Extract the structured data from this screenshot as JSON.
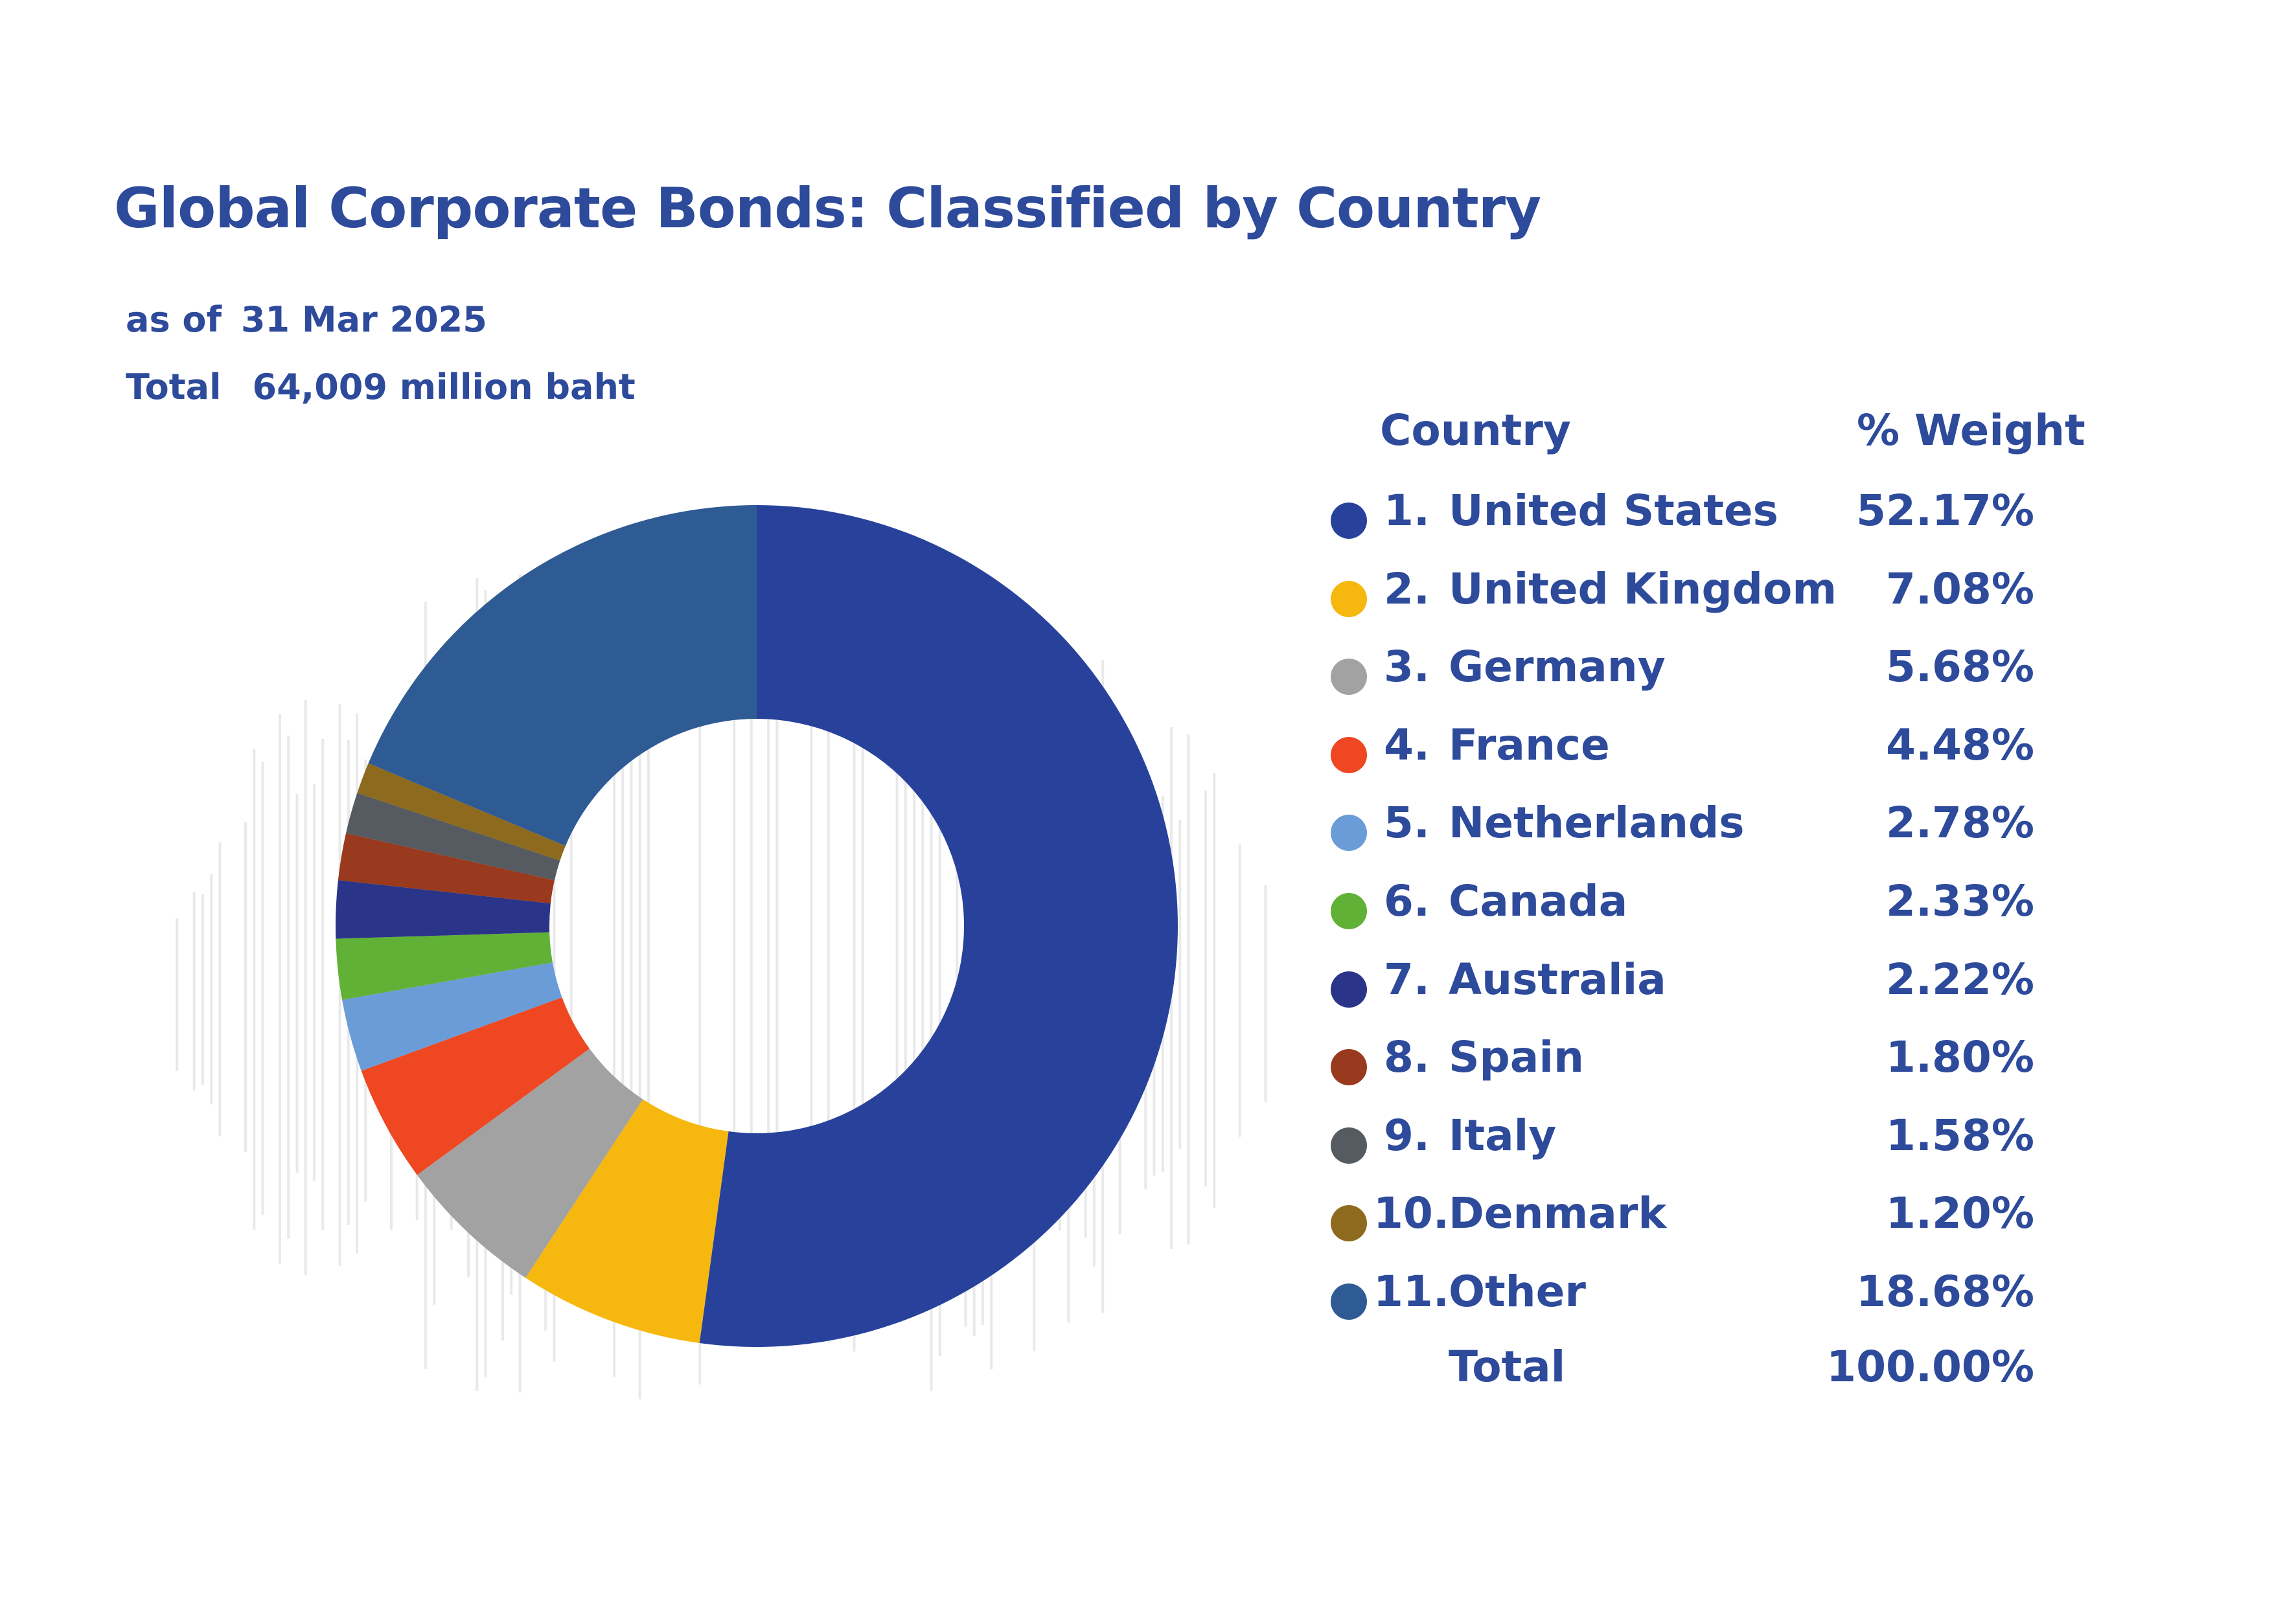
{
  "header": {
    "title": "Global Corporate Bonds: Classified by Country",
    "as_of_label": "as of",
    "as_of_date": "31 Mar 2025",
    "total_label": "Total",
    "total_value": "64,009 million baht"
  },
  "legend": {
    "country_header": "Country",
    "weight_header": "% Weight",
    "total_label": "Total",
    "total_value": "100.00%"
  },
  "chart_data": {
    "type": "pie",
    "title": "Global Corporate Bonds: Classified by Country",
    "categories": [
      "United States",
      "United Kingdom",
      "Germany",
      "France",
      "Netherlands",
      "Canada",
      "Australia",
      "Spain",
      "Italy",
      "Denmark",
      "Other"
    ],
    "values": [
      52.17,
      7.08,
      5.68,
      4.48,
      2.78,
      2.33,
      2.22,
      1.8,
      1.58,
      1.2,
      18.68
    ],
    "labels": [
      "52.17%",
      "7.08%",
      "5.68%",
      "4.48%",
      "2.78%",
      "2.33%",
      "2.22%",
      "1.80%",
      "1.58%",
      "1.20%",
      "18.68%"
    ],
    "indices": [
      "1.",
      "2.",
      "3.",
      "4.",
      "5.",
      "6.",
      "7.",
      "8.",
      "9.",
      "10.",
      "11."
    ],
    "colors": [
      "#28429c",
      "#f6b80f",
      "#a2a2a2",
      "#ee4721",
      "#6a9cd8",
      "#61b136",
      "#2a3488",
      "#99391d",
      "#555b61",
      "#8d6a1e",
      "#2f5b94"
    ],
    "donut": true,
    "start_angle_deg": 0,
    "direction": "clockwise",
    "legend_position": "right"
  }
}
